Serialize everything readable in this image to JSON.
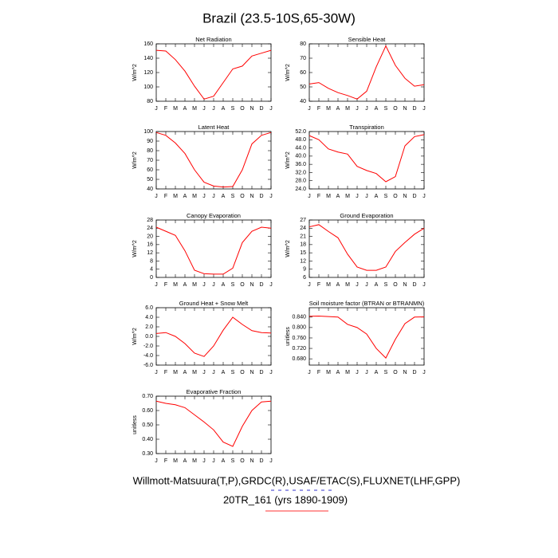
{
  "title": "Brazil (23.5-10S,65-30W)",
  "footnotes": [
    "Willmott-Matsuura(T,P),GRDC(R),USAF/ETAC(S),FLUXNET(LHF,GPP)",
    "20TR_161 (yrs 1890-1909)"
  ],
  "chart_data": [
    {
      "type": "line",
      "title": "Net Radiation",
      "ylabel": "W/m^2",
      "color": "#ff0000",
      "categories": [
        "J",
        "F",
        "M",
        "A",
        "M",
        "J",
        "J",
        "A",
        "S",
        "O",
        "N",
        "D",
        "J"
      ],
      "values": [
        151,
        150,
        138,
        122,
        101,
        83,
        87,
        106,
        125,
        129,
        143,
        147,
        151
      ],
      "ylim": [
        80,
        160
      ],
      "yticks": [
        80,
        100,
        120,
        140,
        160
      ]
    },
    {
      "type": "line",
      "title": "Sensible Heat",
      "ylabel": "W/m^2",
      "color": "#ff0000",
      "categories": [
        "J",
        "F",
        "M",
        "A",
        "M",
        "J",
        "J",
        "A",
        "S",
        "O",
        "N",
        "D",
        "J"
      ],
      "values": [
        52,
        53,
        49,
        46,
        44,
        41.5,
        47,
        64,
        78.5,
        65,
        56,
        50.5,
        51.5
      ],
      "ylim": [
        40,
        80
      ],
      "yticks": [
        40,
        50,
        60,
        70,
        80
      ]
    },
    {
      "type": "line",
      "title": "Latent Heat",
      "ylabel": "W/m^2",
      "color": "#ff0000",
      "categories": [
        "J",
        "F",
        "M",
        "A",
        "M",
        "J",
        "J",
        "A",
        "S",
        "O",
        "N",
        "D",
        "J"
      ],
      "values": [
        99,
        96,
        88,
        77,
        60,
        47,
        43,
        42,
        42.5,
        60,
        87,
        96,
        99
      ],
      "ylim": [
        40,
        100
      ],
      "yticks": [
        40,
        50,
        60,
        70,
        80,
        90,
        100
      ]
    },
    {
      "type": "line",
      "title": "Transpiration",
      "ylabel": "W/m^2",
      "color": "#ff0000",
      "categories": [
        "J",
        "F",
        "M",
        "A",
        "M",
        "J",
        "J",
        "A",
        "S",
        "O",
        "N",
        "D",
        "J"
      ],
      "values": [
        50,
        48,
        43.5,
        42,
        41,
        35,
        33,
        31.5,
        27.5,
        30,
        45,
        49.5,
        50.5
      ],
      "ylim": [
        24,
        52
      ],
      "yticks": [
        {
          "value": 24,
          "label": "24.0"
        },
        {
          "value": 28,
          "label": "28.0"
        },
        {
          "value": 32,
          "label": "32.0"
        },
        {
          "value": 36,
          "label": "36.0"
        },
        {
          "value": 40,
          "label": "40.0"
        },
        {
          "value": 44,
          "label": "44.0"
        },
        {
          "value": 48,
          "label": "48.0"
        },
        {
          "value": 52,
          "label": "52.0"
        }
      ]
    },
    {
      "type": "line",
      "title": "Canopy Evaporation",
      "ylabel": "W/m^2",
      "color": "#ff0000",
      "categories": [
        "J",
        "F",
        "M",
        "A",
        "M",
        "J",
        "J",
        "A",
        "S",
        "O",
        "N",
        "D",
        "J"
      ],
      "values": [
        24.5,
        22.5,
        20.5,
        13,
        3.5,
        1.8,
        1.6,
        1.6,
        4.5,
        17,
        22.5,
        24.5,
        24
      ],
      "ylim": [
        0,
        28
      ],
      "yticks": [
        0,
        4,
        8,
        12,
        16,
        20,
        24,
        28
      ]
    },
    {
      "type": "line",
      "title": "Ground Evaporation",
      "ylabel": "W/m^2",
      "color": "#ff0000",
      "categories": [
        "J",
        "F",
        "M",
        "A",
        "M",
        "J",
        "J",
        "A",
        "S",
        "O",
        "N",
        "D",
        "J"
      ],
      "values": [
        24.5,
        25.3,
        22.8,
        20.5,
        14.5,
        9.8,
        8.6,
        8.6,
        9.8,
        15.5,
        18.8,
        21.8,
        24
      ],
      "ylim": [
        6,
        27
      ],
      "yticks": [
        6,
        9,
        12,
        15,
        18,
        21,
        24,
        27
      ]
    },
    {
      "type": "line",
      "title": "Ground Heat + Snow Melt",
      "ylabel": "W/m^2",
      "color": "#ff0000",
      "categories": [
        "J",
        "F",
        "M",
        "A",
        "M",
        "J",
        "J",
        "A",
        "S",
        "O",
        "N",
        "D",
        "J"
      ],
      "values": [
        0.6,
        0.8,
        0,
        -1.5,
        -3.5,
        -4.2,
        -2,
        1.3,
        4,
        2.5,
        1.2,
        0.8,
        0.7
      ],
      "ylim": [
        -6,
        6
      ],
      "yticks": [
        {
          "value": -6,
          "label": "-6.0"
        },
        {
          "value": -4,
          "label": "-4.0"
        },
        {
          "value": -2,
          "label": "-2.0"
        },
        {
          "value": 0,
          "label": "0.0"
        },
        {
          "value": 2,
          "label": "2.0"
        },
        {
          "value": 4,
          "label": "4.0"
        },
        {
          "value": 6,
          "label": "6.0"
        }
      ]
    },
    {
      "type": "line",
      "title": "Soil moisture factor (BTRAN or BTRANMN)",
      "ylabel": "unitless",
      "color": "#ff0000",
      "categories": [
        "J",
        "F",
        "M",
        "A",
        "M",
        "J",
        "J",
        "A",
        "S",
        "O",
        "N",
        "D",
        "J"
      ],
      "values": [
        0.843,
        0.844,
        0.842,
        0.84,
        0.812,
        0.8,
        0.775,
        0.72,
        0.683,
        0.755,
        0.815,
        0.84,
        0.841
      ],
      "ylim": [
        0.656,
        0.876
      ],
      "yticks": [
        {
          "value": 0.68,
          "label": "0.680"
        },
        {
          "value": 0.72,
          "label": "0.720"
        },
        {
          "value": 0.76,
          "label": "0.760"
        },
        {
          "value": 0.8,
          "label": "0.800"
        },
        {
          "value": 0.84,
          "label": "0.840"
        }
      ]
    },
    {
      "type": "line",
      "title": "Evaporative Fraction",
      "ylabel": "unitless",
      "color": "#ff0000",
      "categories": [
        "J",
        "F",
        "M",
        "A",
        "M",
        "J",
        "J",
        "A",
        "S",
        "O",
        "N",
        "D",
        "J"
      ],
      "values": [
        0.665,
        0.65,
        0.64,
        0.62,
        0.57,
        0.52,
        0.465,
        0.38,
        0.35,
        0.49,
        0.6,
        0.66,
        0.665
      ],
      "ylim": [
        0.3,
        0.7
      ],
      "yticks": [
        {
          "value": 0.3,
          "label": "0.30"
        },
        {
          "value": 0.4,
          "label": "0.40"
        },
        {
          "value": 0.5,
          "label": "0.50"
        },
        {
          "value": 0.6,
          "label": "0.60"
        },
        {
          "value": 0.7,
          "label": "0.70"
        }
      ]
    }
  ]
}
